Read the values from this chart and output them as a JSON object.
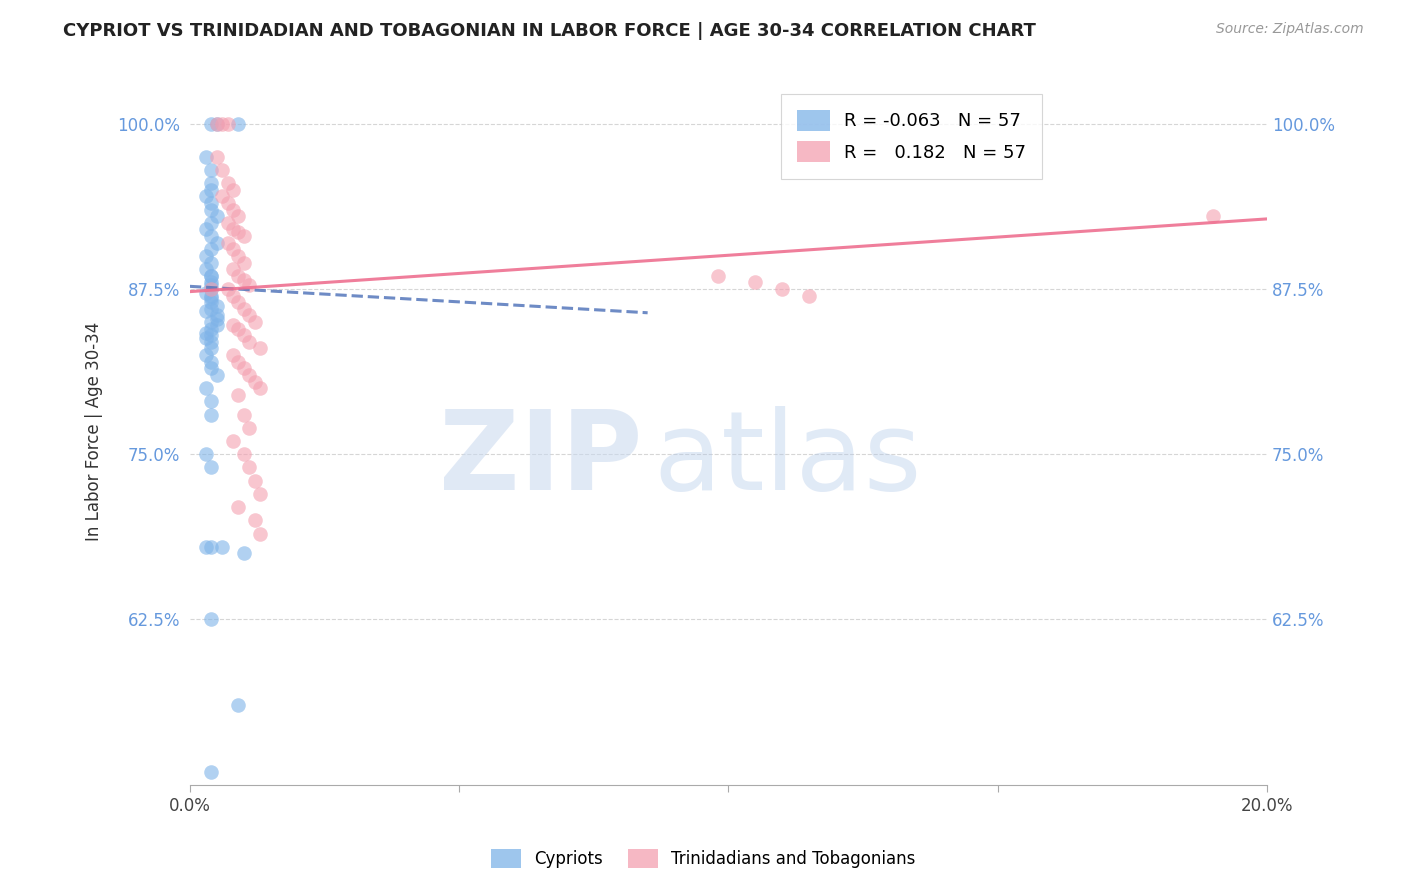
{
  "title": "CYPRIOT VS TRINIDADIAN AND TOBAGONIAN IN LABOR FORCE | AGE 30-34 CORRELATION CHART",
  "source": "Source: ZipAtlas.com",
  "ylabel_label": "In Labor Force | Age 30-34",
  "xmin": 0.0,
  "xmax": 0.2,
  "ymin": 0.5,
  "ymax": 1.035,
  "yticks": [
    0.625,
    0.75,
    0.875,
    1.0
  ],
  "ytick_labels": [
    "62.5%",
    "75.0%",
    "87.5%",
    "100.0%"
  ],
  "xticks": [
    0.0,
    0.05,
    0.1,
    0.15,
    0.2
  ],
  "xtick_labels": [
    "0.0%",
    "",
    "",
    "",
    "20.0%"
  ],
  "color_blue": "#7EB3E8",
  "color_pink": "#F4A0B0",
  "trendline_blue_color": "#5577BB",
  "trendline_pink_color": "#EE7090",
  "blue_x": [
    0.005,
    0.009,
    0.004,
    0.003,
    0.004,
    0.004,
    0.004,
    0.003,
    0.004,
    0.004,
    0.005,
    0.004,
    0.003,
    0.004,
    0.005,
    0.004,
    0.003,
    0.004,
    0.003,
    0.004,
    0.004,
    0.004,
    0.004,
    0.004,
    0.003,
    0.004,
    0.004,
    0.004,
    0.005,
    0.004,
    0.003,
    0.005,
    0.005,
    0.004,
    0.005,
    0.004,
    0.003,
    0.004,
    0.003,
    0.004,
    0.004,
    0.003,
    0.004,
    0.004,
    0.005,
    0.003,
    0.004,
    0.004,
    0.003,
    0.004,
    0.003,
    0.004,
    0.006,
    0.01,
    0.004,
    0.009,
    0.004
  ],
  "blue_y": [
    1.0,
    1.0,
    1.0,
    0.975,
    0.965,
    0.955,
    0.95,
    0.945,
    0.94,
    0.935,
    0.93,
    0.925,
    0.92,
    0.915,
    0.91,
    0.905,
    0.9,
    0.895,
    0.89,
    0.885,
    0.885,
    0.88,
    0.878,
    0.875,
    0.872,
    0.87,
    0.868,
    0.865,
    0.862,
    0.86,
    0.858,
    0.855,
    0.852,
    0.85,
    0.848,
    0.845,
    0.842,
    0.84,
    0.838,
    0.835,
    0.83,
    0.825,
    0.82,
    0.815,
    0.81,
    0.8,
    0.79,
    0.78,
    0.75,
    0.74,
    0.68,
    0.68,
    0.68,
    0.675,
    0.625,
    0.56,
    0.51
  ],
  "pink_x": [
    0.005,
    0.007,
    0.006,
    0.005,
    0.006,
    0.007,
    0.008,
    0.006,
    0.007,
    0.008,
    0.009,
    0.007,
    0.008,
    0.009,
    0.01,
    0.007,
    0.008,
    0.009,
    0.01,
    0.008,
    0.009,
    0.01,
    0.011,
    0.007,
    0.008,
    0.009,
    0.01,
    0.011,
    0.012,
    0.008,
    0.009,
    0.01,
    0.011,
    0.013,
    0.008,
    0.009,
    0.01,
    0.011,
    0.012,
    0.013,
    0.009,
    0.01,
    0.011,
    0.008,
    0.01,
    0.011,
    0.012,
    0.013,
    0.009,
    0.012,
    0.013,
    0.098,
    0.105,
    0.11,
    0.115,
    0.19,
    0.004
  ],
  "pink_y": [
    1.0,
    1.0,
    1.0,
    0.975,
    0.965,
    0.955,
    0.95,
    0.945,
    0.94,
    0.935,
    0.93,
    0.925,
    0.92,
    0.918,
    0.915,
    0.91,
    0.905,
    0.9,
    0.895,
    0.89,
    0.885,
    0.882,
    0.878,
    0.875,
    0.87,
    0.865,
    0.86,
    0.855,
    0.85,
    0.848,
    0.845,
    0.84,
    0.835,
    0.83,
    0.825,
    0.82,
    0.815,
    0.81,
    0.805,
    0.8,
    0.795,
    0.78,
    0.77,
    0.76,
    0.75,
    0.74,
    0.73,
    0.72,
    0.71,
    0.7,
    0.69,
    0.885,
    0.88,
    0.875,
    0.87,
    0.93,
    0.875
  ],
  "blue_line_x": [
    0.0,
    0.085
  ],
  "blue_line_y": [
    0.877,
    0.857
  ],
  "pink_line_x": [
    0.0,
    0.2
  ],
  "pink_line_y": [
    0.873,
    0.928
  ]
}
